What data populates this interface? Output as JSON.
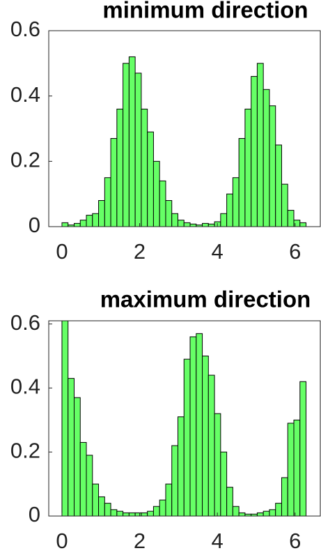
{
  "chart_data": [
    {
      "type": "histogram",
      "title": "minimum direction",
      "color": "#66ff66",
      "bins": [
        0,
        0.1571,
        0.3142,
        0.4712,
        0.6283,
        0.7854,
        0.9425,
        1.0996,
        1.2566,
        1.4137,
        1.5708,
        1.7279,
        1.885,
        2.042,
        2.1991,
        2.3562,
        2.5133,
        2.6704,
        2.8274,
        2.9845,
        3.1416,
        3.2987,
        3.4558,
        3.6128,
        3.7699,
        3.927,
        4.0841,
        4.2412,
        4.3982,
        4.5553,
        4.7124,
        4.8695,
        5.0265,
        5.1836,
        5.3407,
        5.4978,
        5.6549,
        5.8119,
        5.969,
        6.1261,
        6.2832
      ],
      "values": [
        0.012,
        0.005,
        0.01,
        0.02,
        0.035,
        0.04,
        0.08,
        0.15,
        0.27,
        0.36,
        0.5,
        0.52,
        0.47,
        0.36,
        0.29,
        0.2,
        0.14,
        0.08,
        0.04,
        0.02,
        0.012,
        0.008,
        0.005,
        0.01,
        0.008,
        0.015,
        0.04,
        0.1,
        0.15,
        0.27,
        0.36,
        0.46,
        0.5,
        0.42,
        0.37,
        0.25,
        0.13,
        0.05,
        0.02,
        0.012
      ],
      "xlim": [
        -0.34,
        6.65
      ],
      "ylim": [
        0,
        0.6
      ],
      "xticks": [
        0,
        2,
        4,
        6
      ],
      "yticks": [
        0,
        0.2,
        0.4,
        0.6
      ]
    },
    {
      "type": "histogram",
      "title": "maximum direction",
      "color": "#66ff66",
      "bins": [
        0,
        0.1571,
        0.3142,
        0.4712,
        0.6283,
        0.7854,
        0.9425,
        1.0996,
        1.2566,
        1.4137,
        1.5708,
        1.7279,
        1.885,
        2.042,
        2.1991,
        2.3562,
        2.5133,
        2.6704,
        2.8274,
        2.9845,
        3.1416,
        3.2987,
        3.4558,
        3.6128,
        3.7699,
        3.927,
        4.0841,
        4.2412,
        4.3982,
        4.5553,
        4.7124,
        4.8695,
        5.0265,
        5.1836,
        5.3407,
        5.4978,
        5.6549,
        5.8119,
        5.969,
        6.1261,
        6.2832
      ],
      "values": [
        0.61,
        0.43,
        0.37,
        0.23,
        0.19,
        0.1,
        0.06,
        0.04,
        0.02,
        0.015,
        0.01,
        0.01,
        0.01,
        0.01,
        0.015,
        0.03,
        0.05,
        0.1,
        0.22,
        0.31,
        0.49,
        0.56,
        0.57,
        0.5,
        0.44,
        0.32,
        0.2,
        0.09,
        0.03,
        0.01,
        0.006,
        0.006,
        0.01,
        0.015,
        0.02,
        0.04,
        0.12,
        0.29,
        0.3,
        0.42
      ],
      "xlim": [
        -0.34,
        6.65
      ],
      "ylim": [
        0,
        0.61
      ],
      "xticks": [
        0,
        2,
        4,
        6
      ],
      "yticks": [
        0,
        0.2,
        0.4,
        0.6
      ]
    }
  ]
}
